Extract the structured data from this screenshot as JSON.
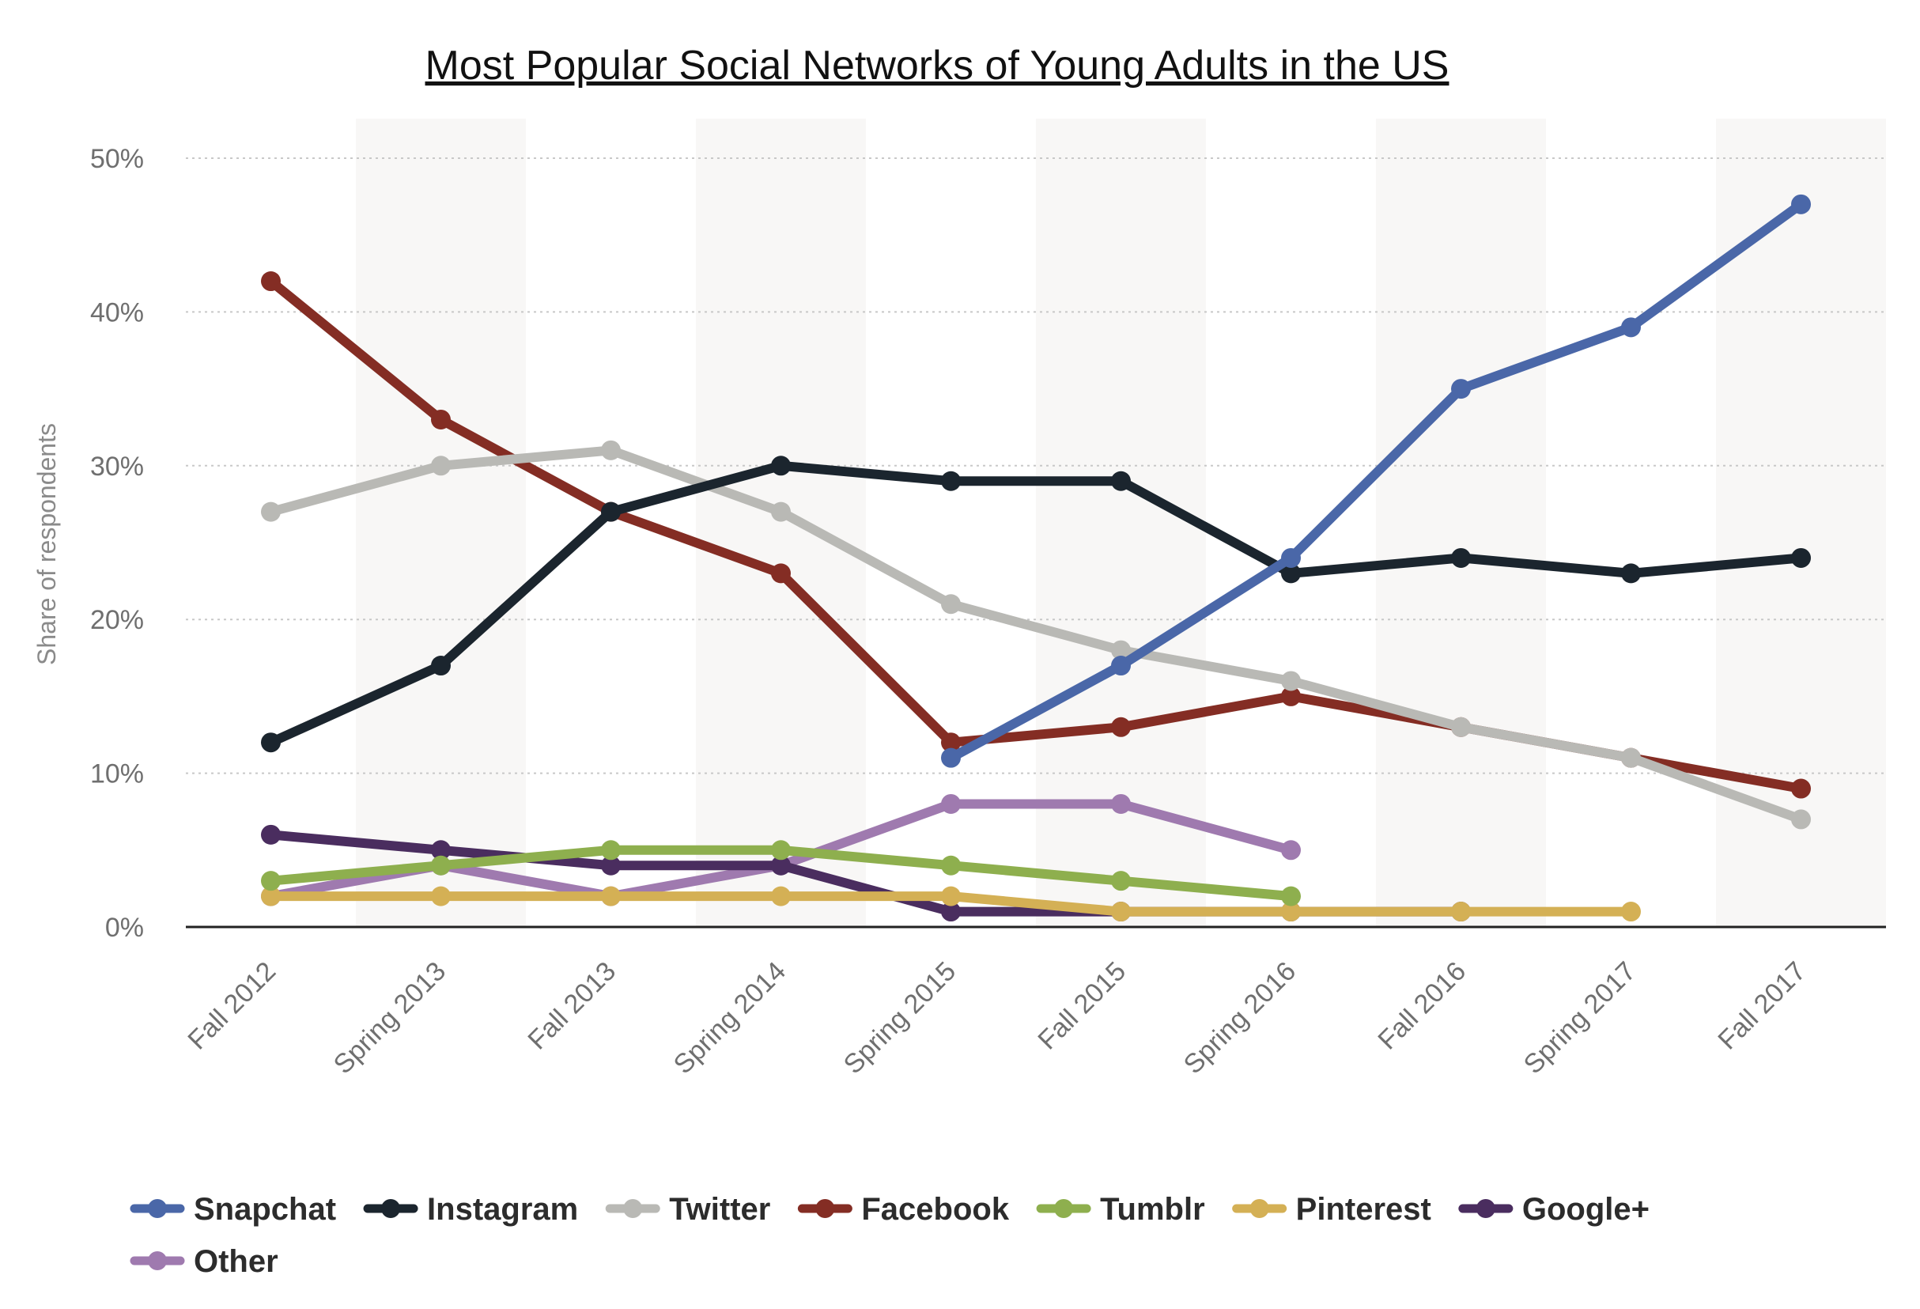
{
  "chart_data": {
    "type": "line",
    "title": "Most Popular Social Networks of Young Adults in the US",
    "xlabel": "",
    "ylabel": "Share of respondents",
    "ylim": [
      0,
      50
    ],
    "yticks": [
      0,
      10,
      20,
      30,
      40,
      50
    ],
    "ytick_labels": [
      "0%",
      "10%",
      "20%",
      "30%",
      "40%",
      "50%"
    ],
    "grid": true,
    "legend_position": "bottom-left",
    "categories": [
      "Fall 2012",
      "Spring 2013",
      "Fall 2013",
      "Spring 2014",
      "Spring 2015",
      "Fall 2015",
      "Spring 2016",
      "Fall 2016",
      "Spring 2017",
      "Fall 2017"
    ],
    "series": [
      {
        "name": "Snapchat",
        "color": "#4a67a8",
        "values": [
          null,
          null,
          null,
          null,
          11,
          17,
          24,
          35,
          39,
          47
        ]
      },
      {
        "name": "Instagram",
        "color": "#1b252e",
        "values": [
          12,
          17,
          27,
          30,
          29,
          29,
          23,
          24,
          23,
          24
        ]
      },
      {
        "name": "Twitter",
        "color": "#b9b9b5",
        "values": [
          27,
          30,
          31,
          27,
          21,
          18,
          16,
          13,
          11,
          7
        ]
      },
      {
        "name": "Facebook",
        "color": "#842d24",
        "values": [
          42,
          33,
          27,
          23,
          12,
          13,
          15,
          13,
          11,
          9
        ]
      },
      {
        "name": "Tumblr",
        "color": "#8eaf4e",
        "values": [
          3,
          4,
          5,
          5,
          4,
          3,
          2,
          null,
          null,
          null
        ]
      },
      {
        "name": "Pinterest",
        "color": "#d4b055",
        "values": [
          2,
          2,
          2,
          2,
          2,
          1,
          1,
          1,
          1,
          null
        ]
      },
      {
        "name": "Google+",
        "color": "#4a2d5f",
        "values": [
          6,
          5,
          4,
          4,
          1,
          1,
          1,
          1,
          null,
          null
        ]
      },
      {
        "name": "Other",
        "color": "#9f7aaf",
        "values": [
          2,
          4,
          2,
          4,
          8,
          8,
          5,
          null,
          null,
          null
        ]
      }
    ]
  }
}
